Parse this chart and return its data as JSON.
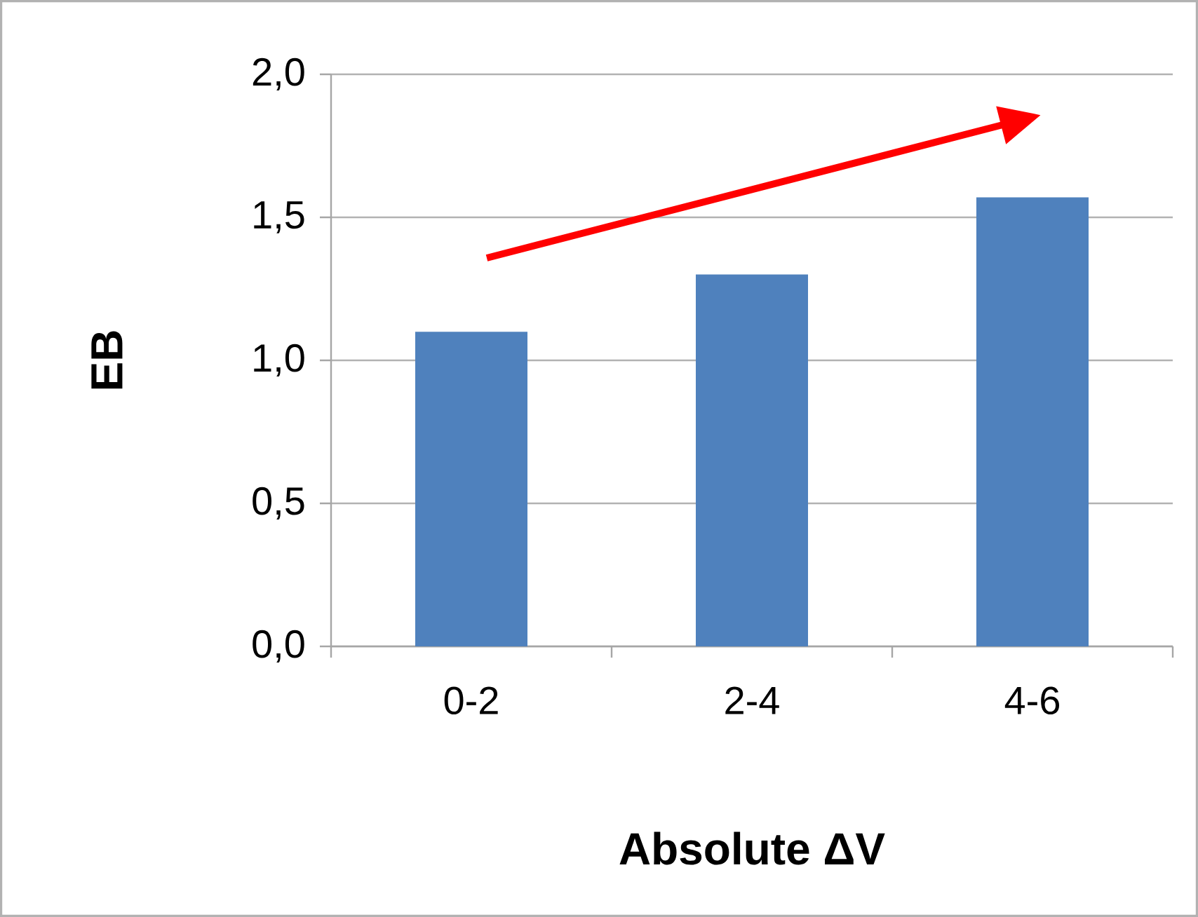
{
  "chart_data": {
    "type": "bar",
    "xlabel": "Absolute ΔV",
    "ylabel": "EB",
    "categories": [
      "0-2",
      "2-4",
      "4-6"
    ],
    "values": [
      1.1,
      1.3,
      1.57
    ],
    "color": "#4f81bd",
    "ylim": [
      0,
      2
    ],
    "yticks": [
      {
        "value": 0,
        "label": "0,0"
      },
      {
        "value": 0.5,
        "label": "0,5"
      },
      {
        "value": 1,
        "label": "1,0"
      },
      {
        "value": 1.5,
        "label": "1,5"
      },
      {
        "value": 2,
        "label": "2,0"
      }
    ],
    "grid": "y"
  }
}
